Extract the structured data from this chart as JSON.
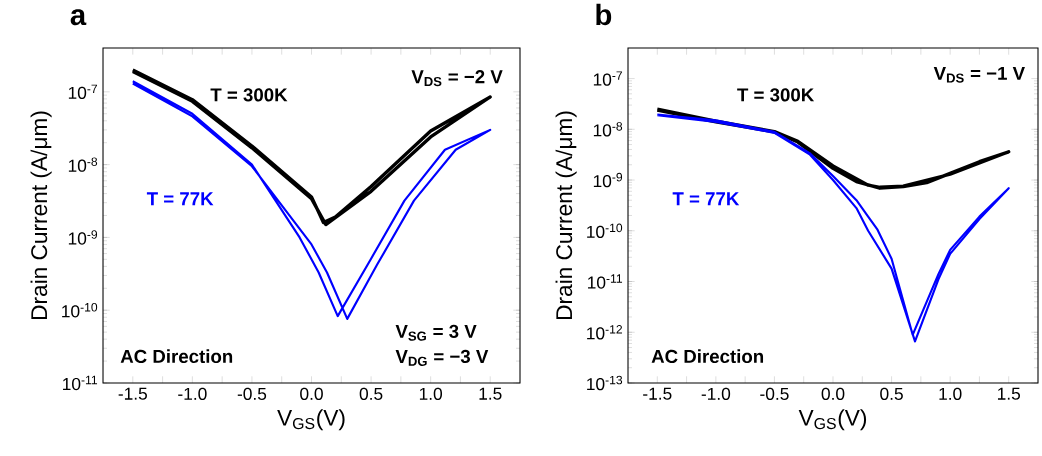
{
  "chart_data": [
    {
      "type": "line",
      "title": "a",
      "xlabel": "V$_{GS}$(V)",
      "ylabel": "Drain Current (A/μm)",
      "log": "y",
      "xlim": [
        -1.75,
        1.75
      ],
      "ylim": [
        1e-11,
        4e-07
      ],
      "xticks": [
        {
          "value": -1.5,
          "label": "-1.5"
        },
        {
          "value": -1.25,
          "label": null
        },
        {
          "value": -1.0,
          "label": "-1.0"
        },
        {
          "value": -0.75,
          "label": null
        },
        {
          "value": -0.5,
          "label": "-0.5"
        },
        {
          "value": -0.25,
          "label": null
        },
        {
          "value": 0.0,
          "label": "0.0"
        },
        {
          "value": 0.25,
          "label": null
        },
        {
          "value": 0.5,
          "label": "0.5"
        },
        {
          "value": 0.75,
          "label": null
        },
        {
          "value": 1.0,
          "label": "1.0"
        },
        {
          "value": 1.25,
          "label": null
        },
        {
          "value": 1.5,
          "label": "1.5"
        }
      ],
      "yticks": [
        {
          "value": 1e-11,
          "label": "10$^{-11}$"
        },
        {
          "value": 1e-10,
          "label": "10$^{-10}$"
        },
        {
          "value": 1e-09,
          "label": "10$^{-9}$"
        },
        {
          "value": 1e-08,
          "label": "10$^{-8}$"
        },
        {
          "value": 1e-07,
          "label": "10$^{-7}$"
        }
      ],
      "series": [
        {
          "name": "T = 300K",
          "color": "#000000",
          "x": [
            -1.5,
            -1.0,
            -0.5,
            0.0,
            0.1,
            0.2,
            0.5,
            1.0,
            1.5,
            1.0,
            0.5,
            0.12,
            0.0,
            -0.5,
            -1.0,
            -1.5
          ],
          "values": [
            2e-07,
            7.8e-08,
            1.8e-08,
            3.6e-09,
            1.6e-09,
            1.9e-09,
            5e-09,
            2.9e-08,
            8.5e-08,
            2.4e-08,
            4.3e-09,
            1.5e-09,
            3.4e-09,
            1.7e-08,
            7.4e-08,
            1.9e-07
          ]
        },
        {
          "name": "T = 77K",
          "color": "#0000ff",
          "x": [
            -1.5,
            -1.0,
            -0.5,
            -0.1,
            0.06,
            0.22,
            0.5,
            0.78,
            1.12,
            1.5,
            1.21,
            0.86,
            0.55,
            0.3,
            0.13,
            0.0,
            -0.5,
            -1.0,
            -1.5
          ],
          "values": [
            1.4e-07,
            5e-08,
            1e-08,
            1e-09,
            3.3e-10,
            8.3e-11,
            5.1e-10,
            3.2e-09,
            1.6e-08,
            3e-08,
            1.6e-08,
            3.2e-09,
            4.2e-10,
            7.6e-11,
            3.3e-10,
            8e-10,
            9.5e-09,
            4.6e-08,
            1.3e-07
          ]
        }
      ],
      "annotations": [
        "V$_{DS}$ = −2 V",
        "V$_{SG}$ = 3 V",
        "V$_{DG}$ = −3 V",
        "AC Direction"
      ]
    },
    {
      "type": "line",
      "title": "b",
      "xlabel": "V$_{GS}$(V)",
      "ylabel": "Drain Current (A/μm)",
      "log": "y",
      "xlim": [
        -1.75,
        1.75
      ],
      "ylim": [
        1e-13,
        4e-07
      ],
      "xticks": [
        {
          "value": -1.5,
          "label": "-1.5"
        },
        {
          "value": -1.25,
          "label": null
        },
        {
          "value": -1.0,
          "label": "-1.0"
        },
        {
          "value": -0.75,
          "label": null
        },
        {
          "value": -0.5,
          "label": "-0.5"
        },
        {
          "value": -0.25,
          "label": null
        },
        {
          "value": 0.0,
          "label": "0.0"
        },
        {
          "value": 0.25,
          "label": null
        },
        {
          "value": 0.5,
          "label": "0.5"
        },
        {
          "value": 0.75,
          "label": null
        },
        {
          "value": 1.0,
          "label": "1.0"
        },
        {
          "value": 1.25,
          "label": null
        },
        {
          "value": 1.5,
          "label": "1.5"
        }
      ],
      "yticks": [
        {
          "value": 1e-13,
          "label": "10$^{-13}$"
        },
        {
          "value": 1e-12,
          "label": "10$^{-12}$"
        },
        {
          "value": 1e-11,
          "label": "10$^{-11}$"
        },
        {
          "value": 1e-10,
          "label": "10$^{-10}$"
        },
        {
          "value": 1e-09,
          "label": "10$^{-9}$"
        },
        {
          "value": 1e-08,
          "label": "10$^{-8}$"
        },
        {
          "value": 1e-07,
          "label": "10$^{-7}$"
        }
      ],
      "series": [
        {
          "name": "T = 300K",
          "color": "#000000",
          "x": [
            -1.5,
            -1.0,
            -0.5,
            -0.3,
            0.0,
            0.2,
            0.4,
            0.6,
            0.8,
            1.0,
            1.25,
            1.5,
            1.0,
            0.6,
            0.4,
            0.3,
            0.0,
            -0.3,
            -0.5,
            -1.0,
            -1.5
          ],
          "values": [
            2.4e-08,
            1.4e-08,
            8.9e-09,
            5.6e-09,
            1.7e-09,
            9.3e-10,
            6.9e-10,
            7.4e-10,
            8.9e-10,
            1.35e-09,
            2.3e-09,
            3.6e-09,
            1.3e-09,
            7.6e-10,
            7.2e-10,
            7.9e-10,
            1.9e-09,
            5.8e-09,
            9e-09,
            1.45e-08,
            2.5e-08
          ]
        },
        {
          "name": "T = 77K",
          "color": "#0000ff",
          "x": [
            -1.5,
            -1.0,
            -0.5,
            -0.2,
            0.0,
            0.2,
            0.3,
            0.38,
            0.5,
            0.68,
            0.9,
            1.0,
            1.25,
            1.5,
            1.25,
            1.0,
            0.9,
            0.7,
            0.5,
            0.3,
            0.2,
            0.0,
            -0.2,
            -0.5,
            -1.0,
            -1.5
          ],
          "values": [
            1.95e-08,
            1.5e-08,
            8.9e-09,
            3.4e-09,
            1.2e-09,
            4e-10,
            1.9e-10,
            1.05e-10,
            2.8e-11,
            8.9e-13,
            1.4e-11,
            4.2e-11,
            1.9e-10,
            6.9e-10,
            1.7e-10,
            3.5e-11,
            1.1e-11,
            6.6e-13,
            1.8e-11,
            1e-10,
            2.8e-10,
            1e-09,
            3.2e-09,
            8.5e-09,
            1.4e-08,
            1.9e-08
          ]
        }
      ],
      "annotations": [
        "V$_{DS}$ = −1 V",
        "AC Direction"
      ]
    }
  ]
}
